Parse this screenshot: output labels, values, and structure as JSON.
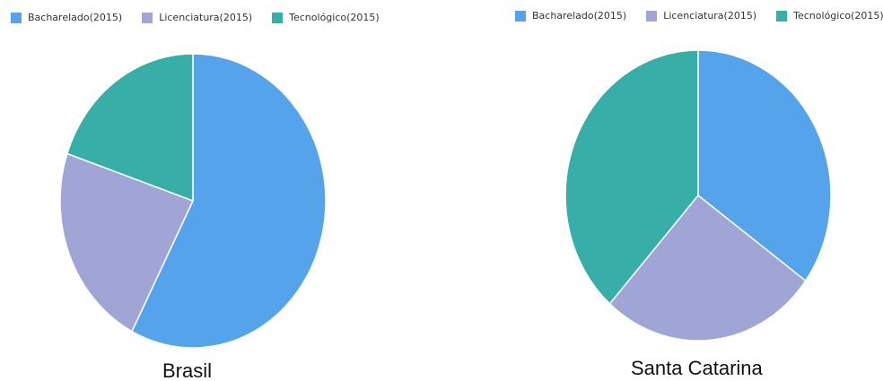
{
  "chart_data": [
    {
      "type": "pie",
      "title": "Brasil",
      "categories": [
        "Bacharelado(2015)",
        "Licenciatura(2015)",
        "Tecnológico(2015)"
      ],
      "values": [
        57.6,
        22.6,
        19.8
      ],
      "colors": [
        "#55a3ea",
        "#a1a5d6",
        "#38aea8"
      ],
      "legend_position": "top-left",
      "start_angle_deg": 0
    },
    {
      "type": "pie",
      "title": "Santa Catarina",
      "categories": [
        "Bacharelado(2015)",
        "Licenciatura(2015)",
        "Tecnológico(2015)"
      ],
      "values": [
        35.0,
        26.6,
        38.4
      ],
      "colors": [
        "#55a3ea",
        "#a1a5d6",
        "#38aea8"
      ],
      "legend_position": "top-left",
      "start_angle_deg": 0
    }
  ]
}
